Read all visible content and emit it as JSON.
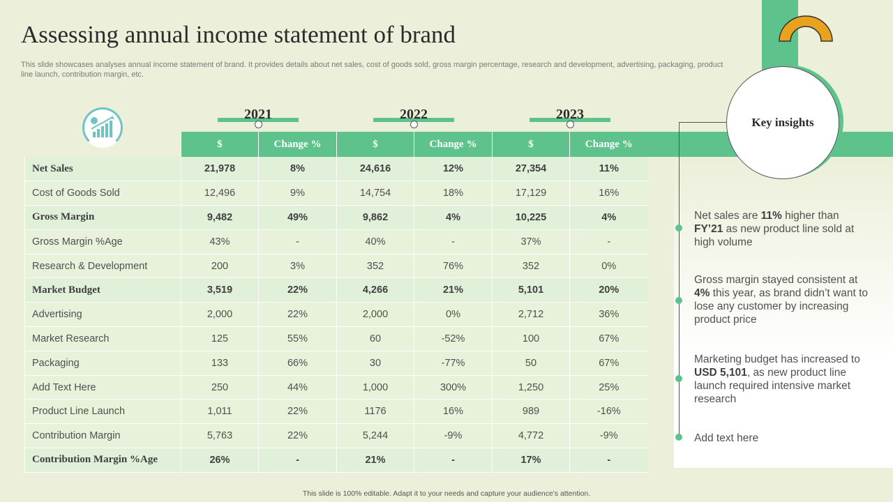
{
  "title": "Assessing annual income statement of brand",
  "subtitle": "This slide showcases analyses annual income statement of brand. It provides details about net sales, cost of goods sold, gross margin percentage, research and development, advertising, packaging, product line launch, contribution margin, etc.",
  "years": [
    "2021",
    "2022",
    "2023"
  ],
  "columns": [
    "$",
    "Change %",
    "$",
    "Change %",
    "$",
    "Change %"
  ],
  "rows": [
    {
      "label": "Net Sales",
      "bold": true,
      "values": [
        "21,978",
        "8%",
        "24,616",
        "12%",
        "27,354",
        "11%"
      ]
    },
    {
      "label": "Cost of Goods Sold",
      "bold": false,
      "values": [
        "12,496",
        "9%",
        "14,754",
        "18%",
        "17,129",
        "16%"
      ]
    },
    {
      "label": "Gross Margin",
      "bold": true,
      "values": [
        "9,482",
        "49%",
        "9,862",
        "4%",
        "10,225",
        "4%"
      ]
    },
    {
      "label": "Gross Margin %Age",
      "bold": false,
      "values": [
        "43%",
        "-",
        "40%",
        "-",
        "37%",
        "-"
      ]
    },
    {
      "label": "Research & Development",
      "bold": false,
      "values": [
        "200",
        "3%",
        "352",
        "76%",
        "352",
        "0%"
      ]
    },
    {
      "label": "Market Budget",
      "bold": true,
      "values": [
        "3,519",
        "22%",
        "4,266",
        "21%",
        "5,101",
        "20%"
      ]
    },
    {
      "label": "Advertising",
      "bold": false,
      "values": [
        "2,000",
        "22%",
        "2,000",
        "0%",
        "2,712",
        "36%"
      ]
    },
    {
      "label": "Market Research",
      "bold": false,
      "values": [
        "125",
        "55%",
        "60",
        "-52%",
        "100",
        "67%"
      ]
    },
    {
      "label": "Packaging",
      "bold": false,
      "values": [
        "133",
        "66%",
        "30",
        "-77%",
        "50",
        "67%"
      ]
    },
    {
      "label": "Add Text Here",
      "bold": false,
      "values": [
        "250",
        "44%",
        "1,000",
        "300%",
        "1,250",
        "25%"
      ]
    },
    {
      "label": "Product Line Launch",
      "bold": false,
      "values": [
        "1,011",
        "22%",
        "1176",
        "16%",
        "989",
        "-16%"
      ]
    },
    {
      "label": "Contribution Margin",
      "bold": false,
      "values": [
        "5,763",
        "22%",
        "5,244",
        "-9%",
        "4,772",
        "-9%"
      ]
    },
    {
      "label": "Contribution  Margin %Age",
      "bold": true,
      "values": [
        "26%",
        "-",
        "21%",
        "-",
        "17%",
        "-"
      ]
    }
  ],
  "key_insights": {
    "heading": "Key insights",
    "items": [
      {
        "t1": "Net sales are ",
        "b1": "11%",
        "t2": " higher than ",
        "b2": "FY’21",
        "t3": " as new product line sold at high volume"
      },
      {
        "t1": "Gross margin stayed consistent at ",
        "b1": "4%",
        "t2": " this year, as brand didn’t want to lose any customer by increasing product price",
        "b2": "",
        "t3": ""
      },
      {
        "t1": "Marketing budget has increased to ",
        "b1": "USD 5,101",
        "t2": ", as new product line launch required intensive market research",
        "b2": "",
        "t3": ""
      },
      {
        "t1": "Add text here",
        "b1": "",
        "t2": "",
        "b2": "",
        "t3": ""
      }
    ]
  },
  "icons": {
    "growth": "growth-chart-icon",
    "arch": "arch-decoration-icon"
  },
  "colors": {
    "accent": "#5ec28d",
    "arch": "#e8a21d",
    "background": "#ecefd9"
  },
  "footer": "This slide is 100% editable. Adapt it to your needs and capture your audience's attention."
}
